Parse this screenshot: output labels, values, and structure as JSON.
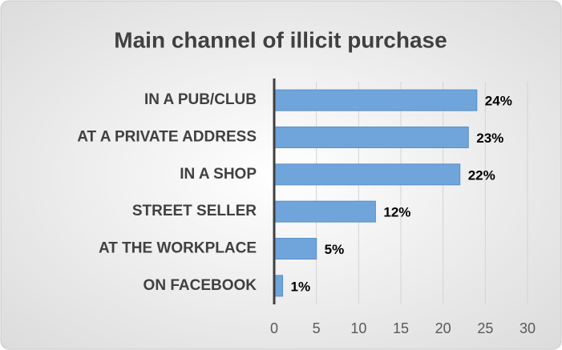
{
  "chart_data": {
    "type": "bar",
    "orientation": "horizontal",
    "title": "Main channel of illicit purchase",
    "categories": [
      "IN A PUB/CLUB",
      "AT A PRIVATE ADDRESS",
      "IN A SHOP",
      "STREET SELLER",
      "AT THE WORKPLACE",
      "ON FACEBOOK"
    ],
    "values": [
      24,
      23,
      22,
      12,
      5,
      1
    ],
    "value_labels": [
      "24%",
      "23%",
      "22%",
      "12%",
      "5%",
      "1%"
    ],
    "color": "#6fa5db",
    "xlim": [
      0,
      30
    ],
    "xticks": [
      0,
      5,
      10,
      15,
      20,
      25,
      30
    ],
    "grid": true
  }
}
